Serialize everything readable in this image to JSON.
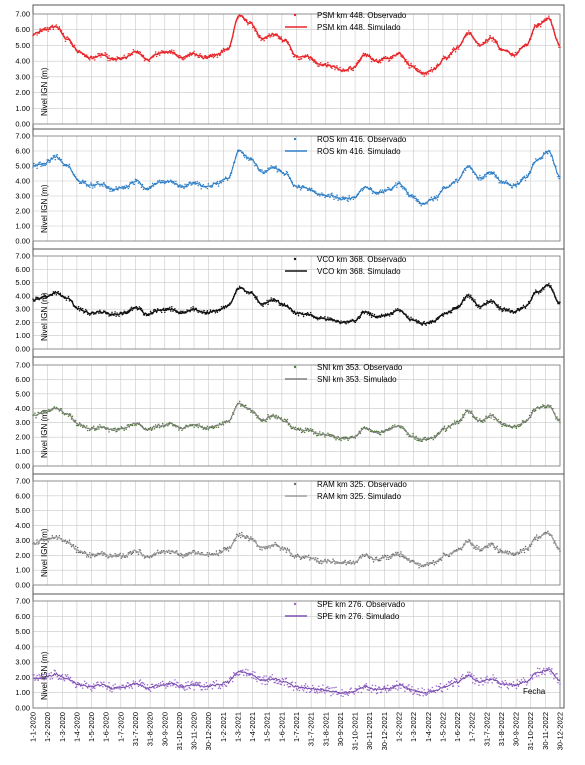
{
  "chart_data": [
    {
      "type": "line",
      "ylabel": "Nivel IGN (m)",
      "ylim": [
        0,
        7
      ],
      "yticks": [
        "7.00",
        "6.00",
        "5.00",
        "4.00",
        "3.00",
        "2.00",
        "1.00",
        "0.00"
      ],
      "legend_placement": "top-center",
      "series": [
        {
          "name": "PSM km 448. Observado",
          "style": "points",
          "color": "#e8262a"
        },
        {
          "name": "PSM km 448. Simulado",
          "style": "line",
          "color": "#e8262a"
        }
      ],
      "levels": [
        5.7,
        6.0,
        6.2,
        5.4,
        4.6,
        4.2,
        4.4,
        4.1,
        4.2,
        4.6,
        4.1,
        4.5,
        4.6,
        4.2,
        4.5,
        4.2,
        4.4,
        4.8,
        6.9,
        6.4,
        5.4,
        5.7,
        5.3,
        4.3,
        4.3,
        3.8,
        3.7,
        3.4,
        3.6,
        4.4,
        4.0,
        4.2,
        4.5,
        3.7,
        3.2,
        3.5,
        4.2,
        4.8,
        5.8,
        5.0,
        5.5,
        4.7,
        4.4,
        5.0,
        6.3,
        6.7,
        5.0
      ]
    },
    {
      "type": "line",
      "ylabel": "Nivel IGN (m)",
      "ylim": [
        0,
        7
      ],
      "yticks": [
        "7.00",
        "6.00",
        "5.00",
        "4.00",
        "3.00",
        "2.00",
        "1.00",
        "0.00"
      ],
      "legend_placement": "top-center",
      "series": [
        {
          "name": "ROS km 416. Observado",
          "style": "points",
          "color": "#2e7fc7"
        },
        {
          "name": "ROS km 416. Simulado",
          "style": "line",
          "color": "#2e7fc7"
        }
      ],
      "levels": [
        5.0,
        5.2,
        5.6,
        5.0,
        4.0,
        3.7,
        3.8,
        3.4,
        3.6,
        4.0,
        3.5,
        3.9,
        4.0,
        3.6,
        3.9,
        3.6,
        3.8,
        4.2,
        6.0,
        5.5,
        4.6,
        4.9,
        4.5,
        3.6,
        3.5,
        3.1,
        3.0,
        2.8,
        2.9,
        3.6,
        3.2,
        3.4,
        3.8,
        3.0,
        2.5,
        2.8,
        3.5,
        4.0,
        5.0,
        4.2,
        4.6,
        3.9,
        3.7,
        4.2,
        5.4,
        6.0,
        4.3
      ]
    },
    {
      "type": "line",
      "ylabel": "Nivel IGN (m)",
      "ylim": [
        0,
        7
      ],
      "yticks": [
        "7.00",
        "6.00",
        "5.00",
        "4.00",
        "3.00",
        "2.00",
        "1.00",
        "0.00"
      ],
      "legend_placement": "top-center",
      "series": [
        {
          "name": "VCO km 368. Observado",
          "style": "points",
          "color": "#111111"
        },
        {
          "name": "VCO km 368. Simulado",
          "style": "line",
          "color": "#111111"
        }
      ],
      "levels": [
        3.7,
        3.9,
        4.2,
        3.8,
        3.0,
        2.7,
        2.8,
        2.6,
        2.7,
        3.1,
        2.6,
        2.9,
        3.0,
        2.7,
        3.0,
        2.7,
        2.9,
        3.2,
        4.6,
        4.2,
        3.4,
        3.7,
        3.3,
        2.7,
        2.6,
        2.3,
        2.2,
        2.0,
        2.1,
        2.8,
        2.4,
        2.6,
        2.9,
        2.2,
        1.9,
        2.1,
        2.7,
        3.1,
        4.0,
        3.2,
        3.6,
        3.0,
        2.8,
        3.2,
        4.3,
        4.8,
        3.4
      ]
    },
    {
      "type": "line",
      "ylabel": "Nivel IGN (m)",
      "ylim": [
        0,
        7
      ],
      "yticks": [
        "7.00",
        "6.00",
        "5.00",
        "4.00",
        "3.00",
        "2.00",
        "1.00",
        "0.00"
      ],
      "legend_placement": "top-center",
      "series": [
        {
          "name": "SNI km 353. Observado",
          "style": "points",
          "color": "#4e7a34"
        },
        {
          "name": "SNI km 353. Simulado",
          "style": "line",
          "color": "#7f7f7f"
        }
      ],
      "levels": [
        3.5,
        3.7,
        4.0,
        3.6,
        2.9,
        2.6,
        2.7,
        2.5,
        2.6,
        3.0,
        2.5,
        2.8,
        2.9,
        2.6,
        2.9,
        2.6,
        2.8,
        3.1,
        4.3,
        3.9,
        3.2,
        3.5,
        3.1,
        2.5,
        2.5,
        2.2,
        2.1,
        1.9,
        2.0,
        2.6,
        2.3,
        2.5,
        2.8,
        2.1,
        1.8,
        2.0,
        2.6,
        3.0,
        3.8,
        3.1,
        3.5,
        2.9,
        2.7,
        3.1,
        4.0,
        4.2,
        3.1
      ]
    },
    {
      "type": "line",
      "ylabel": "Nivel IGN (m)",
      "ylim": [
        0,
        7
      ],
      "yticks": [
        "7.00",
        "6.00",
        "5.00",
        "4.00",
        "3.00",
        "2.00",
        "1.00",
        "0.00"
      ],
      "legend_placement": "top-center",
      "series": [
        {
          "name": "RAM km 325. Observado",
          "style": "points",
          "color": "#6b6b6b"
        },
        {
          "name": "RAM km 325. Simulado",
          "style": "line",
          "color": "#9a9a9a"
        }
      ],
      "levels": [
        2.8,
        3.0,
        3.2,
        2.9,
        2.3,
        2.0,
        2.1,
        1.9,
        2.0,
        2.3,
        1.9,
        2.2,
        2.3,
        2.0,
        2.2,
        2.0,
        2.1,
        2.4,
        3.4,
        3.1,
        2.5,
        2.7,
        2.4,
        1.9,
        1.9,
        1.6,
        1.6,
        1.5,
        1.5,
        2.0,
        1.7,
        1.9,
        2.1,
        1.6,
        1.3,
        1.5,
        2.0,
        2.3,
        2.9,
        2.4,
        2.7,
        2.2,
        2.1,
        2.4,
        3.2,
        3.5,
        2.4
      ]
    },
    {
      "type": "line",
      "ylabel": "Nivel IGN (m)",
      "ylim": [
        0,
        7
      ],
      "yticks": [
        "7.00",
        "6.00",
        "5.00",
        "4.00",
        "3.00",
        "2.00",
        "1.00",
        "0.00"
      ],
      "legend_placement": "top-center",
      "xlabel": "Fecha",
      "series": [
        {
          "name": "SPE km 276. Observado",
          "style": "points",
          "color": "#9966cc"
        },
        {
          "name": "SPE km 276. Simulado",
          "style": "line",
          "color": "#7b4fb0"
        }
      ],
      "levels": [
        1.9,
        2.0,
        2.2,
        1.9,
        1.5,
        1.4,
        1.5,
        1.3,
        1.4,
        1.6,
        1.3,
        1.5,
        1.6,
        1.4,
        1.5,
        1.4,
        1.5,
        1.7,
        2.4,
        2.2,
        1.8,
        1.9,
        1.7,
        1.4,
        1.3,
        1.2,
        1.1,
        1.0,
        1.1,
        1.4,
        1.2,
        1.3,
        1.5,
        1.2,
        1.0,
        1.1,
        1.4,
        1.7,
        2.1,
        1.7,
        1.9,
        1.6,
        1.5,
        1.7,
        2.3,
        2.5,
        1.8
      ]
    }
  ],
  "x_tick_labels": [
    "1-1-2020",
    "1-2-2020",
    "1-3-2020",
    "1-4-2020",
    "1-5-2020",
    "1-6-2020",
    "1-7-2020",
    "31-7-2020",
    "31-8-2020",
    "30-9-2020",
    "31-10-2020",
    "30-11-2020",
    "30-12-2020",
    "1-2-2021",
    "1-3-2021",
    "1-4-2021",
    "1-5-2021",
    "1-6-2021",
    "1-7-2021",
    "31-7-2021",
    "31-8-2021",
    "30-9-2021",
    "31-10-2021",
    "30-11-2021",
    "30-12-2021",
    "1-2-2022",
    "1-3-2022",
    "1-4-2022",
    "1-5-2022",
    "1-6-2022",
    "1-7-2022",
    "31-7-2022",
    "31-8-2022",
    "30-9-2022",
    "31-10-2022",
    "30-11-2022",
    "30-12-2022"
  ]
}
